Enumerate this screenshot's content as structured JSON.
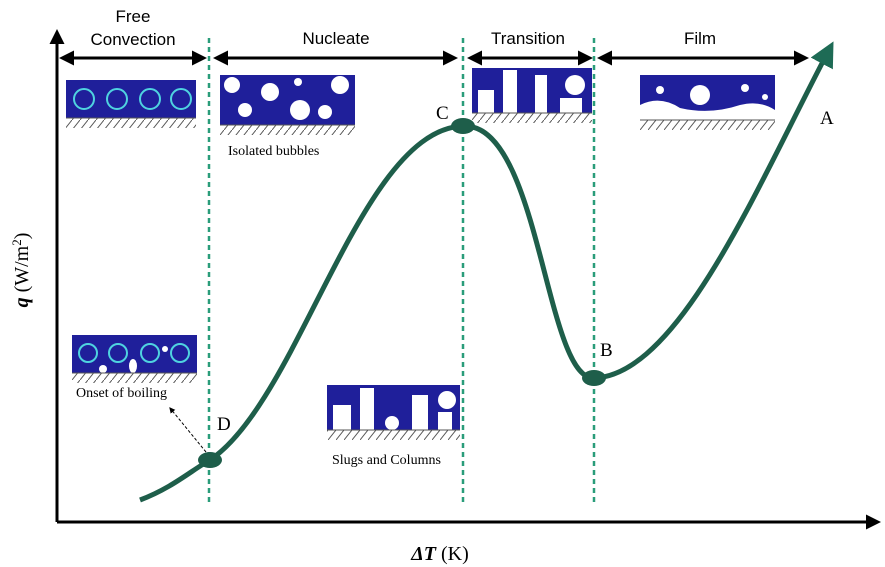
{
  "regions": [
    {
      "label": [
        "Free",
        "Convection"
      ]
    },
    {
      "label": [
        "Nucleate"
      ]
    },
    {
      "label": [
        "Transition"
      ]
    },
    {
      "label": [
        "Film"
      ]
    }
  ],
  "points": {
    "a": "A",
    "b": "B",
    "c": "C",
    "d": "D"
  },
  "captions": {
    "isolated": "Isolated bubbles",
    "onset": "Onset of boiling",
    "slugs": "Slugs and Columns"
  },
  "y_label": {
    "symbol": "q",
    "unit": "(W/m",
    "exponent": "2",
    "close": ")"
  },
  "x_label": {
    "symbol": "ΔT",
    "unit": "(K)"
  }
}
